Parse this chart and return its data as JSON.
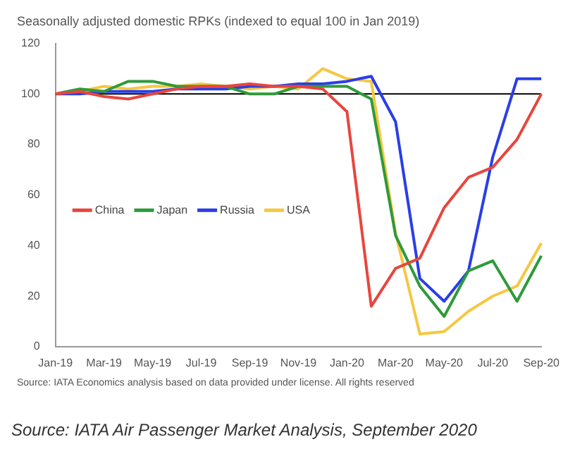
{
  "chart_data": {
    "type": "line",
    "title": "Seasonally adjusted domestic RPKs (indexed to equal 100 in Jan 2019)",
    "categories": [
      "Jan-19",
      null,
      "Mar-19",
      null,
      "May-19",
      null,
      "Jul-19",
      null,
      "Sep-19",
      null,
      "Nov-19",
      null,
      "Jan-20",
      null,
      "Mar-20",
      null,
      "May-20",
      null,
      "Jul-20",
      null,
      "Sep-20"
    ],
    "series": [
      {
        "name": "China",
        "color": "#e8463c",
        "values": [
          100,
          101,
          99,
          98,
          100,
          102,
          103,
          103,
          104,
          103,
          103,
          102,
          93,
          16,
          31,
          35,
          55,
          67,
          71,
          82,
          100
        ]
      },
      {
        "name": "Japan",
        "color": "#2e9a3a",
        "values": [
          100,
          102,
          101,
          105,
          105,
          103,
          103,
          103,
          100,
          100,
          103,
          103,
          103,
          98,
          44,
          24,
          12,
          30,
          34,
          18,
          36
        ]
      },
      {
        "name": "Russia",
        "color": "#2a3ee8",
        "values": [
          100,
          100,
          101,
          101,
          101,
          102,
          102,
          102,
          103,
          103,
          104,
          104,
          105,
          107,
          89,
          27,
          18,
          30,
          75,
          106,
          106
        ]
      },
      {
        "name": "USA",
        "color": "#f5c842",
        "values": [
          100,
          101,
          103,
          102,
          103,
          103,
          104,
          103,
          102,
          103,
          102,
          110,
          106,
          105,
          45,
          5,
          6,
          14,
          20,
          24,
          41
        ]
      }
    ],
    "ylim": [
      0,
      120
    ],
    "yticks": [
      0,
      20,
      40,
      60,
      80,
      100,
      120
    ],
    "ref_lines": [
      {
        "axis": "y",
        "value": 100,
        "color": "#000000"
      }
    ],
    "grid": false,
    "legend": "left",
    "marker": "none",
    "line_style": "solid",
    "annotations": [
      "Source: IATA Economics analysis based on data provided under license. All rights reserved",
      "Source: IATA Air Passenger Market Analysis, September 2020"
    ]
  }
}
